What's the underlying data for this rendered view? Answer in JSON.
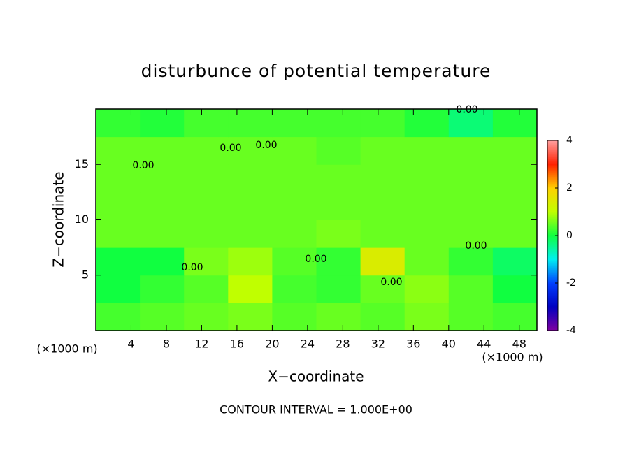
{
  "chart_data": {
    "type": "heatmap",
    "title": "disturbunce of potential temperature",
    "xlabel": "X−coordinate",
    "ylabel": "Z−coordinate",
    "x_unit": "(×1000 m)",
    "footer": "CONTOUR INTERVAL = 1.000E+00",
    "xlim": [
      0,
      50
    ],
    "xticks": [
      4,
      8,
      12,
      16,
      20,
      24,
      28,
      32,
      36,
      40,
      44,
      48
    ],
    "ylim": [
      0,
      20
    ],
    "yticks": [
      5,
      10,
      15
    ],
    "z": [
      [
        0.3,
        0.4,
        0.5,
        0.6,
        0.4,
        0.5,
        0.4,
        0.6,
        0.4,
        0.3
      ],
      [
        0,
        0.2,
        0.4,
        1.0,
        0.3,
        0.2,
        0.5,
        0.7,
        0.4,
        0
      ],
      [
        0,
        0,
        0.6,
        0.8,
        0.4,
        0.2,
        1.4,
        0.5,
        0.2,
        -0.2
      ],
      [
        0.5,
        0.5,
        0.5,
        0.5,
        0.5,
        0.6,
        0.5,
        0.5,
        0.5,
        0.5
      ],
      [
        0.5,
        0.5,
        0.5,
        0.5,
        0.5,
        0.5,
        0.5,
        0.5,
        0.5,
        0.5
      ],
      [
        0.5,
        0.5,
        0.5,
        0.5,
        0.5,
        0.5,
        0.5,
        0.5,
        0.5,
        0.5
      ],
      [
        0.5,
        0.5,
        0.5,
        0.5,
        0.5,
        0.4,
        0.5,
        0.5,
        0.5,
        0.5
      ],
      [
        0.2,
        0.1,
        0.3,
        0.3,
        0.3,
        0.3,
        0.3,
        0.1,
        -0.3,
        0.1
      ]
    ],
    "colorscale": [
      [
        -4,
        "#8000a0"
      ],
      [
        -3,
        "#0000c0"
      ],
      [
        -2,
        "#0040ff"
      ],
      [
        -1,
        "#00f0f0"
      ],
      [
        0,
        "#10ff40"
      ],
      [
        1,
        "#c0ff00"
      ],
      [
        2,
        "#ffd000"
      ],
      [
        3,
        "#ff2000"
      ],
      [
        4,
        "#ffa0a0"
      ]
    ],
    "clim": [
      -4,
      4
    ],
    "cticks": [
      -4,
      -2,
      0,
      2,
      4
    ],
    "contour_labels": [
      "0.00",
      "0.00",
      "0.00",
      "0.00",
      "0.00",
      "0.00",
      "0.00",
      "0.00"
    ]
  }
}
